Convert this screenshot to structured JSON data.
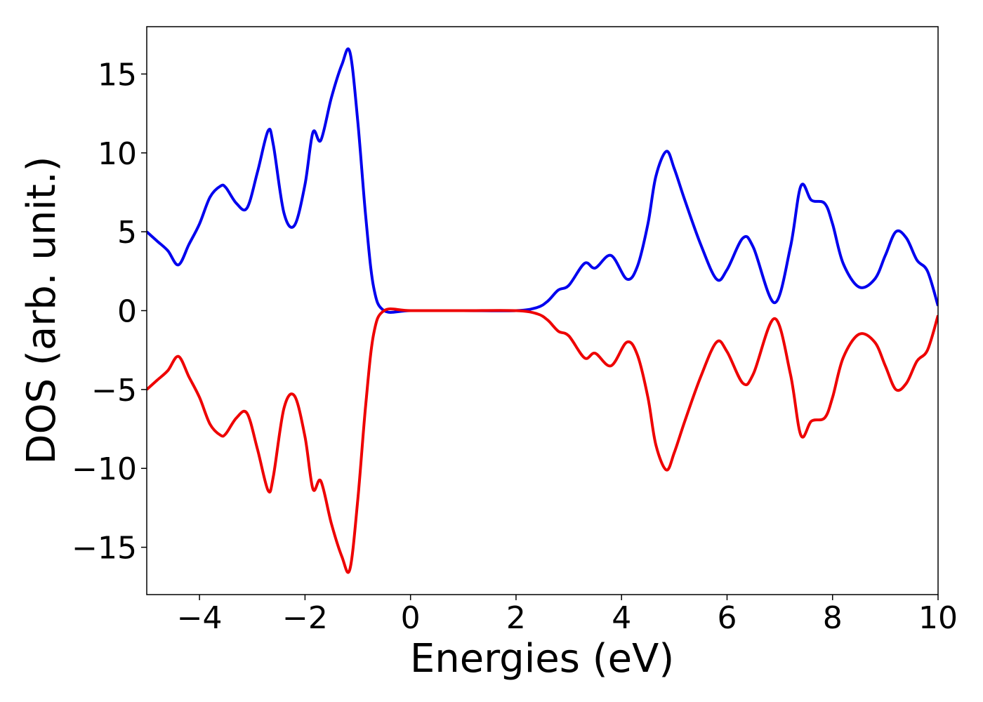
{
  "chart_data": {
    "type": "line",
    "xlabel": "Energies (eV)",
    "ylabel": "DOS (arb. unit.)",
    "xlim": [
      -5,
      10
    ],
    "ylim": [
      -18,
      18
    ],
    "grid": false,
    "legend": "none",
    "x_ticks": [
      -4,
      -2,
      0,
      2,
      4,
      6,
      8,
      10
    ],
    "x_tick_labels": [
      "−4",
      "−2",
      "0",
      "2",
      "4",
      "6",
      "8",
      "10"
    ],
    "y_ticks": [
      -15,
      -10,
      -5,
      0,
      5,
      10,
      15
    ],
    "y_tick_labels": [
      "−15",
      "−10",
      "−5",
      "0",
      "5",
      "10",
      "15"
    ],
    "series": [
      {
        "color": "#0000ee",
        "x": [
          -5.0,
          -4.8,
          -4.6,
          -4.4,
          -4.2,
          -4.0,
          -3.8,
          -3.6,
          -3.5,
          -3.3,
          -3.1,
          -2.9,
          -2.7,
          -2.6,
          -2.4,
          -2.2,
          -2.0,
          -1.85,
          -1.7,
          -1.5,
          -1.3,
          -1.15,
          -1.0,
          -0.85,
          -0.7,
          -0.5,
          0.0,
          1.0,
          2.0,
          2.4,
          2.6,
          2.8,
          3.0,
          3.3,
          3.5,
          3.8,
          4.1,
          4.3,
          4.5,
          4.65,
          4.85,
          5.0,
          5.2,
          5.5,
          5.8,
          6.0,
          6.3,
          6.5,
          6.9,
          7.2,
          7.4,
          7.6,
          7.85,
          8.0,
          8.2,
          8.5,
          8.8,
          9.0,
          9.2,
          9.4,
          9.6,
          9.8,
          10.0
        ],
        "y": [
          5.0,
          4.4,
          3.8,
          2.9,
          4.2,
          5.5,
          7.2,
          7.9,
          7.8,
          6.8,
          6.5,
          8.8,
          11.4,
          10.5,
          6.2,
          5.4,
          8.0,
          11.3,
          10.8,
          13.5,
          15.6,
          16.4,
          12.0,
          6.0,
          1.5,
          0.0,
          0.0,
          0.0,
          0.0,
          0.2,
          0.6,
          1.3,
          1.6,
          3.0,
          2.7,
          3.5,
          2.0,
          2.8,
          5.5,
          8.5,
          10.1,
          9.0,
          7.0,
          4.2,
          2.0,
          2.6,
          4.6,
          4.0,
          0.5,
          4.0,
          7.9,
          7.0,
          6.8,
          5.5,
          3.0,
          1.5,
          2.0,
          3.5,
          5.0,
          4.6,
          3.2,
          2.5,
          0.3
        ]
      },
      {
        "color": "#ee0000",
        "x": [
          -5.0,
          -4.8,
          -4.6,
          -4.4,
          -4.2,
          -4.0,
          -3.8,
          -3.6,
          -3.5,
          -3.3,
          -3.1,
          -2.9,
          -2.7,
          -2.6,
          -2.4,
          -2.2,
          -2.0,
          -1.85,
          -1.7,
          -1.5,
          -1.3,
          -1.15,
          -1.0,
          -0.85,
          -0.7,
          -0.5,
          0.0,
          1.0,
          2.0,
          2.4,
          2.6,
          2.8,
          3.0,
          3.3,
          3.5,
          3.8,
          4.1,
          4.3,
          4.5,
          4.65,
          4.85,
          5.0,
          5.2,
          5.5,
          5.8,
          6.0,
          6.3,
          6.5,
          6.9,
          7.2,
          7.4,
          7.6,
          7.85,
          8.0,
          8.2,
          8.5,
          8.8,
          9.0,
          9.2,
          9.4,
          9.6,
          9.8,
          10.0
        ],
        "y": [
          -5.0,
          -4.4,
          -3.8,
          -2.9,
          -4.2,
          -5.5,
          -7.2,
          -7.9,
          -7.8,
          -6.8,
          -6.5,
          -8.8,
          -11.4,
          -10.5,
          -6.2,
          -5.4,
          -8.0,
          -11.3,
          -10.8,
          -13.5,
          -15.6,
          -16.4,
          -12.0,
          -6.0,
          -1.5,
          0.0,
          0.0,
          0.0,
          0.0,
          -0.2,
          -0.6,
          -1.3,
          -1.6,
          -3.0,
          -2.7,
          -3.5,
          -2.0,
          -2.8,
          -5.5,
          -8.5,
          -10.1,
          -9.0,
          -7.0,
          -4.2,
          -2.0,
          -2.6,
          -4.6,
          -4.0,
          -0.5,
          -4.0,
          -7.9,
          -7.0,
          -6.8,
          -5.5,
          -3.0,
          -1.5,
          -2.0,
          -3.5,
          -5.0,
          -4.6,
          -3.2,
          -2.5,
          -0.3
        ]
      }
    ]
  }
}
